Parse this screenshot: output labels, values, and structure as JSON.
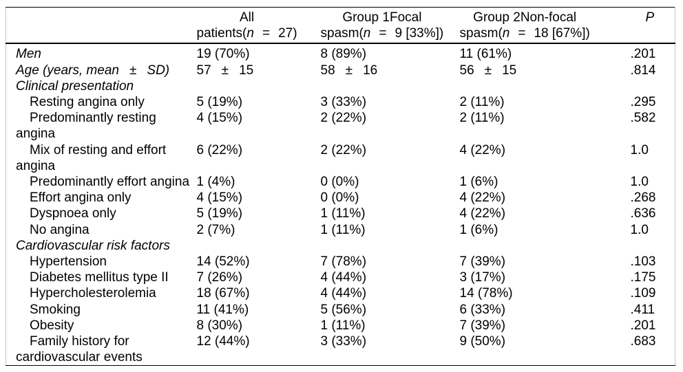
{
  "table": {
    "header": {
      "col1": "",
      "col2": {
        "line1": "All",
        "pre": "patients(",
        "n": "n",
        "eq": "=",
        "post": "27)"
      },
      "col3": {
        "line1": "Group 1Focal",
        "pre": "spasm(",
        "n": "n",
        "eq": "=",
        "post": "9 [33%])"
      },
      "col4": {
        "line1": "Group 2Non-focal",
        "pre": "spasm(",
        "n": "n",
        "eq": "=",
        "post": "18 [67%])"
      },
      "col5": "P"
    },
    "rows": [
      {
        "label": [
          "Men"
        ],
        "italic": true,
        "indent": false,
        "cells": [
          "19 (70%)",
          "8 (89%)",
          "11 (61%)",
          ".201"
        ]
      },
      {
        "label": [
          "Age (years, mean ± SD)"
        ],
        "italic": true,
        "indent": false,
        "cells": [
          "57 ± 15",
          "58 ± 16",
          "56 ± 15",
          ".814"
        ]
      },
      {
        "label": [
          "Clinical presentation"
        ],
        "italic": true,
        "indent": false,
        "cells": [
          "",
          "",
          "",
          ""
        ]
      },
      {
        "label": [
          "Resting angina only"
        ],
        "italic": false,
        "indent": true,
        "cells": [
          "5 (19%)",
          "3 (33%)",
          "2 (11%)",
          ".295"
        ]
      },
      {
        "label": [
          "Predominantly resting",
          "angina"
        ],
        "italic": false,
        "indent": true,
        "cells": [
          "4 (15%)",
          "2 (22%)",
          "2 (11%)",
          ".582"
        ]
      },
      {
        "label": [
          "Mix of resting and effort",
          "angina"
        ],
        "italic": false,
        "indent": true,
        "cells": [
          "6 (22%)",
          "2 (22%)",
          "4 (22%)",
          "1.0"
        ]
      },
      {
        "label": [
          "Predominantly effort angina"
        ],
        "italic": false,
        "indent": true,
        "cells": [
          "1 (4%)",
          "0 (0%)",
          "1 (6%)",
          "1.0"
        ]
      },
      {
        "label": [
          "Effort angina only"
        ],
        "italic": false,
        "indent": true,
        "cells": [
          "4 (15%)",
          "0 (0%)",
          "4 (22%)",
          ".268"
        ]
      },
      {
        "label": [
          "Dyspnoea only"
        ],
        "italic": false,
        "indent": true,
        "cells": [
          "5 (19%)",
          "1 (11%)",
          "4 (22%)",
          ".636"
        ]
      },
      {
        "label": [
          "No angina"
        ],
        "italic": false,
        "indent": true,
        "cells": [
          "2 (7%)",
          "1 (11%)",
          "1 (6%)",
          "1.0"
        ]
      },
      {
        "label": [
          "Cardiovascular risk factors"
        ],
        "italic": true,
        "indent": false,
        "cells": [
          "",
          "",
          "",
          ""
        ]
      },
      {
        "label": [
          "Hypertension"
        ],
        "italic": false,
        "indent": true,
        "cells": [
          "14 (52%)",
          "7 (78%)",
          "7 (39%)",
          ".103"
        ]
      },
      {
        "label": [
          "Diabetes mellitus type II"
        ],
        "italic": false,
        "indent": true,
        "cells": [
          "7 (26%)",
          "4 (44%)",
          "3 (17%)",
          ".175"
        ]
      },
      {
        "label": [
          "Hypercholesterolemia"
        ],
        "italic": false,
        "indent": true,
        "cells": [
          "18 (67%)",
          "4 (44%)",
          "14 (78%)",
          ".109"
        ]
      },
      {
        "label": [
          "Smoking"
        ],
        "italic": false,
        "indent": true,
        "cells": [
          "11 (41%)",
          "5 (56%)",
          "6 (33%)",
          ".411"
        ]
      },
      {
        "label": [
          "Obesity"
        ],
        "italic": false,
        "indent": true,
        "cells": [
          "8 (30%)",
          "1 (11%)",
          "7 (39%)",
          ".201"
        ]
      },
      {
        "label": [
          "Family history for",
          "cardiovascular events"
        ],
        "italic": false,
        "indent": true,
        "cells": [
          "12 (44%)",
          "3 (33%)",
          "9 (50%)",
          ".683"
        ]
      }
    ]
  }
}
